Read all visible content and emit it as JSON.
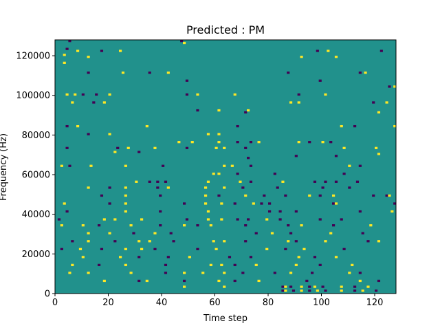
{
  "chart_data": {
    "type": "heatmap",
    "title": "Predicted : PM",
    "xlabel": "Time step",
    "ylabel": "Frequency (Hz)",
    "xlim": [
      0,
      128
    ],
    "ylim": [
      0,
      128000
    ],
    "x_ticks": [
      0,
      20,
      40,
      60,
      80,
      100,
      120
    ],
    "y_ticks": [
      0,
      20000,
      40000,
      60000,
      80000,
      100000,
      120000
    ],
    "grid": false,
    "colormap": "viridis",
    "colors": {
      "background": "#21918c",
      "high": "#fde725",
      "low": "#440154"
    },
    "n_time_steps": 128,
    "n_freq_bins": 128,
    "cells_note": "[time_step, freq_bin, value]; freq_bin b spans b*1000..(b+1)*1000 Hz; 1 = high, -1 = low; all other cells are mid",
    "cells": [
      [
        5,
        127,
        -1
      ],
      [
        47,
        127,
        -1
      ],
      [
        48,
        126,
        1
      ],
      [
        4,
        123,
        -1
      ],
      [
        8,
        122,
        1
      ],
      [
        17,
        122,
        -1
      ],
      [
        24,
        122,
        1
      ],
      [
        98,
        122,
        -1
      ],
      [
        102,
        122,
        1
      ],
      [
        122,
        122,
        -1
      ],
      [
        3,
        120,
        1
      ],
      [
        12,
        119,
        1
      ],
      [
        92,
        119,
        1
      ],
      [
        105,
        119,
        1
      ],
      [
        3,
        116,
        1
      ],
      [
        12,
        111,
        -1
      ],
      [
        25,
        111,
        1
      ],
      [
        35,
        111,
        -1
      ],
      [
        42,
        111,
        1
      ],
      [
        87,
        111,
        -1
      ],
      [
        114,
        111,
        -1
      ],
      [
        116,
        111,
        1
      ],
      [
        49,
        107,
        -1
      ],
      [
        99,
        107,
        -1
      ],
      [
        125,
        104,
        -1
      ],
      [
        127,
        104,
        1
      ],
      [
        4,
        100,
        1
      ],
      [
        7,
        100,
        1
      ],
      [
        10,
        100,
        -1
      ],
      [
        15,
        100,
        -1
      ],
      [
        20,
        100,
        1
      ],
      [
        49,
        100,
        -1
      ],
      [
        53,
        100,
        1
      ],
      [
        67,
        100,
        1
      ],
      [
        91,
        100,
        -1
      ],
      [
        101,
        100,
        1
      ],
      [
        6,
        96,
        1
      ],
      [
        14,
        96,
        -1
      ],
      [
        18,
        96,
        1
      ],
      [
        88,
        96,
        1
      ],
      [
        91,
        96,
        1
      ],
      [
        119,
        96,
        -1
      ],
      [
        124,
        96,
        1
      ],
      [
        53,
        92,
        -1
      ],
      [
        61,
        92,
        1
      ],
      [
        72,
        92,
        1
      ],
      [
        71,
        91,
        -1
      ],
      [
        121,
        91,
        1
      ],
      [
        4,
        84,
        -1
      ],
      [
        8,
        84,
        1
      ],
      [
        34,
        84,
        1
      ],
      [
        68,
        84,
        -1
      ],
      [
        107,
        84,
        1
      ],
      [
        112,
        84,
        -1
      ],
      [
        127,
        84,
        1
      ],
      [
        12,
        80,
        -1
      ],
      [
        20,
        80,
        1
      ],
      [
        57,
        80,
        1
      ],
      [
        61,
        80,
        1
      ],
      [
        46,
        76,
        1
      ],
      [
        51,
        76,
        1
      ],
      [
        61,
        76,
        1
      ],
      [
        68,
        76,
        -1
      ],
      [
        73,
        76,
        -1
      ],
      [
        76,
        76,
        1
      ],
      [
        91,
        76,
        1
      ],
      [
        95,
        76,
        -1
      ],
      [
        100,
        76,
        1
      ],
      [
        103,
        76,
        -1
      ],
      [
        4,
        73,
        -1
      ],
      [
        23,
        73,
        -1
      ],
      [
        27,
        73,
        1
      ],
      [
        37,
        73,
        1
      ],
      [
        49,
        73,
        -1
      ],
      [
        60,
        73,
        1
      ],
      [
        63,
        73,
        1
      ],
      [
        71,
        73,
        -1
      ],
      [
        108,
        73,
        1
      ],
      [
        120,
        73,
        1
      ],
      [
        22,
        71,
        1
      ],
      [
        31,
        71,
        -1
      ],
      [
        121,
        70,
        1
      ],
      [
        90,
        69,
        -1
      ],
      [
        105,
        69,
        -1
      ],
      [
        72,
        68,
        -1
      ],
      [
        2,
        64,
        1
      ],
      [
        5,
        64,
        -1
      ],
      [
        13,
        64,
        1
      ],
      [
        26,
        64,
        1
      ],
      [
        40,
        64,
        -1
      ],
      [
        63,
        64,
        1
      ],
      [
        66,
        64,
        1
      ],
      [
        73,
        64,
        -1
      ],
      [
        110,
        64,
        1
      ],
      [
        114,
        64,
        -1
      ],
      [
        59,
        60,
        1
      ],
      [
        61,
        60,
        1
      ],
      [
        68,
        60,
        -1
      ],
      [
        82,
        60,
        -1
      ],
      [
        108,
        60,
        -1
      ],
      [
        30,
        56,
        1
      ],
      [
        35,
        56,
        -1
      ],
      [
        38,
        56,
        -1
      ],
      [
        41,
        56,
        -1
      ],
      [
        57,
        56,
        1
      ],
      [
        69,
        56,
        1
      ],
      [
        73,
        56,
        -1
      ],
      [
        85,
        56,
        1
      ],
      [
        97,
        56,
        -1
      ],
      [
        101,
        56,
        -1
      ],
      [
        105,
        56,
        -1
      ],
      [
        113,
        56,
        -1
      ],
      [
        12,
        53,
        1
      ],
      [
        20,
        53,
        -1
      ],
      [
        26,
        53,
        1
      ],
      [
        38,
        53,
        -1
      ],
      [
        42,
        53,
        1
      ],
      [
        56,
        53,
        1
      ],
      [
        63,
        53,
        1
      ],
      [
        70,
        53,
        -1
      ],
      [
        83,
        53,
        -1
      ],
      [
        100,
        53,
        -1
      ],
      [
        110,
        53,
        -1
      ],
      [
        17,
        49,
        -1
      ],
      [
        26,
        49,
        1
      ],
      [
        39,
        49,
        -1
      ],
      [
        56,
        49,
        1
      ],
      [
        61,
        49,
        -1
      ],
      [
        71,
        49,
        1
      ],
      [
        78,
        49,
        -1
      ],
      [
        86,
        49,
        -1
      ],
      [
        95,
        49,
        1
      ],
      [
        99,
        49,
        -1
      ],
      [
        104,
        49,
        1
      ],
      [
        119,
        49,
        -1
      ],
      [
        124,
        49,
        -1
      ],
      [
        125,
        49,
        1
      ],
      [
        3,
        45,
        1
      ],
      [
        20,
        45,
        -1
      ],
      [
        26,
        45,
        1
      ],
      [
        48,
        45,
        -1
      ],
      [
        56,
        45,
        1
      ],
      [
        62,
        45,
        1
      ],
      [
        67,
        45,
        -1
      ],
      [
        74,
        45,
        1
      ],
      [
        77,
        45,
        -1
      ],
      [
        80,
        45,
        -1
      ],
      [
        104,
        45,
        -1
      ],
      [
        105,
        45,
        1
      ],
      [
        127,
        45,
        -1
      ],
      [
        4,
        41,
        -1
      ],
      [
        26,
        41,
        1
      ],
      [
        39,
        41,
        -1
      ],
      [
        57,
        41,
        1
      ],
      [
        80,
        41,
        -1
      ],
      [
        84,
        41,
        -1
      ],
      [
        90,
        41,
        -1
      ],
      [
        114,
        41,
        -1
      ],
      [
        126,
        41,
        1
      ],
      [
        1,
        37,
        -1
      ],
      [
        18,
        37,
        1
      ],
      [
        22,
        37,
        1
      ],
      [
        32,
        37,
        1
      ],
      [
        49,
        37,
        -1
      ],
      [
        57,
        37,
        1
      ],
      [
        62,
        37,
        1
      ],
      [
        68,
        37,
        -1
      ],
      [
        72,
        37,
        -1
      ],
      [
        79,
        37,
        1
      ],
      [
        84,
        37,
        -1
      ],
      [
        99,
        37,
        -1
      ],
      [
        107,
        37,
        -1
      ],
      [
        2,
        34,
        1
      ],
      [
        10,
        34,
        1
      ],
      [
        16,
        34,
        -1
      ],
      [
        28,
        34,
        1
      ],
      [
        39,
        34,
        -1
      ],
      [
        48,
        34,
        1
      ],
      [
        53,
        34,
        -1
      ],
      [
        58,
        34,
        1
      ],
      [
        71,
        34,
        -1
      ],
      [
        87,
        34,
        -1
      ],
      [
        92,
        34,
        1
      ],
      [
        104,
        34,
        -1
      ],
      [
        118,
        34,
        1
      ],
      [
        12,
        30,
        1
      ],
      [
        20,
        30,
        1
      ],
      [
        29,
        30,
        -1
      ],
      [
        37,
        30,
        1
      ],
      [
        43,
        30,
        -1
      ],
      [
        75,
        30,
        -1
      ],
      [
        81,
        30,
        1
      ],
      [
        88,
        30,
        -1
      ],
      [
        103,
        30,
        1
      ],
      [
        115,
        30,
        -1
      ],
      [
        6,
        26,
        -1
      ],
      [
        12,
        26,
        1
      ],
      [
        22,
        26,
        -1
      ],
      [
        31,
        26,
        1
      ],
      [
        35,
        26,
        1
      ],
      [
        44,
        26,
        -1
      ],
      [
        59,
        26,
        1
      ],
      [
        63,
        26,
        1
      ],
      [
        71,
        26,
        -1
      ],
      [
        87,
        26,
        1
      ],
      [
        90,
        26,
        -1
      ],
      [
        101,
        26,
        1
      ],
      [
        117,
        26,
        -1
      ],
      [
        121,
        26,
        1
      ],
      [
        2,
        22,
        -1
      ],
      [
        9,
        22,
        1
      ],
      [
        17,
        22,
        -1
      ],
      [
        26,
        22,
        1
      ],
      [
        32,
        22,
        1
      ],
      [
        37,
        22,
        -1
      ],
      [
        53,
        22,
        -1
      ],
      [
        60,
        22,
        1
      ],
      [
        79,
        22,
        1
      ],
      [
        86,
        22,
        -1
      ],
      [
        93,
        22,
        1
      ],
      [
        108,
        22,
        -1
      ],
      [
        10,
        18,
        1
      ],
      [
        24,
        18,
        1
      ],
      [
        31,
        18,
        -1
      ],
      [
        42,
        18,
        -1
      ],
      [
        50,
        18,
        1
      ],
      [
        65,
        18,
        -1
      ],
      [
        73,
        18,
        -1
      ],
      [
        91,
        18,
        1
      ],
      [
        97,
        18,
        -1
      ],
      [
        105,
        18,
        1
      ],
      [
        6,
        14,
        1
      ],
      [
        16,
        14,
        -1
      ],
      [
        26,
        14,
        1
      ],
      [
        41,
        14,
        -1
      ],
      [
        58,
        14,
        1
      ],
      [
        62,
        14,
        1
      ],
      [
        67,
        14,
        -1
      ],
      [
        75,
        14,
        1
      ],
      [
        90,
        14,
        1
      ],
      [
        99,
        14,
        -1
      ],
      [
        111,
        14,
        1
      ],
      [
        5,
        10,
        1
      ],
      [
        12,
        10,
        1
      ],
      [
        28,
        10,
        1
      ],
      [
        41,
        10,
        -1
      ],
      [
        48,
        10,
        1
      ],
      [
        55,
        10,
        1
      ],
      [
        63,
        10,
        1
      ],
      [
        70,
        10,
        -1
      ],
      [
        82,
        10,
        -1
      ],
      [
        88,
        10,
        1
      ],
      [
        96,
        10,
        -1
      ],
      [
        110,
        10,
        1
      ],
      [
        114,
        10,
        -1
      ],
      [
        18,
        6,
        1
      ],
      [
        31,
        6,
        -1
      ],
      [
        34,
        6,
        1
      ],
      [
        48,
        6,
        -1
      ],
      [
        61,
        6,
        1
      ],
      [
        67,
        6,
        -1
      ],
      [
        76,
        6,
        1
      ],
      [
        94,
        6,
        -1
      ],
      [
        114,
        6,
        1
      ],
      [
        121,
        6,
        -1
      ],
      [
        48,
        3,
        1
      ],
      [
        63,
        3,
        1
      ],
      [
        85,
        3,
        -1
      ],
      [
        86,
        3,
        1
      ],
      [
        88,
        3,
        -1
      ],
      [
        92,
        3,
        1
      ],
      [
        95,
        3,
        -1
      ],
      [
        97,
        3,
        1
      ],
      [
        100,
        3,
        -1
      ],
      [
        107,
        3,
        1
      ],
      [
        112,
        3,
        -1
      ],
      [
        117,
        3,
        1
      ],
      [
        85,
        1,
        -1
      ],
      [
        86,
        1,
        1
      ],
      [
        89,
        1,
        -1
      ],
      [
        92,
        1,
        1
      ],
      [
        95,
        1,
        -1
      ],
      [
        98,
        1,
        1
      ],
      [
        101,
        1,
        -1
      ],
      [
        107,
        1,
        1
      ],
      [
        112,
        1,
        -1
      ],
      [
        115,
        1,
        1
      ],
      [
        120,
        1,
        -1
      ]
    ]
  }
}
